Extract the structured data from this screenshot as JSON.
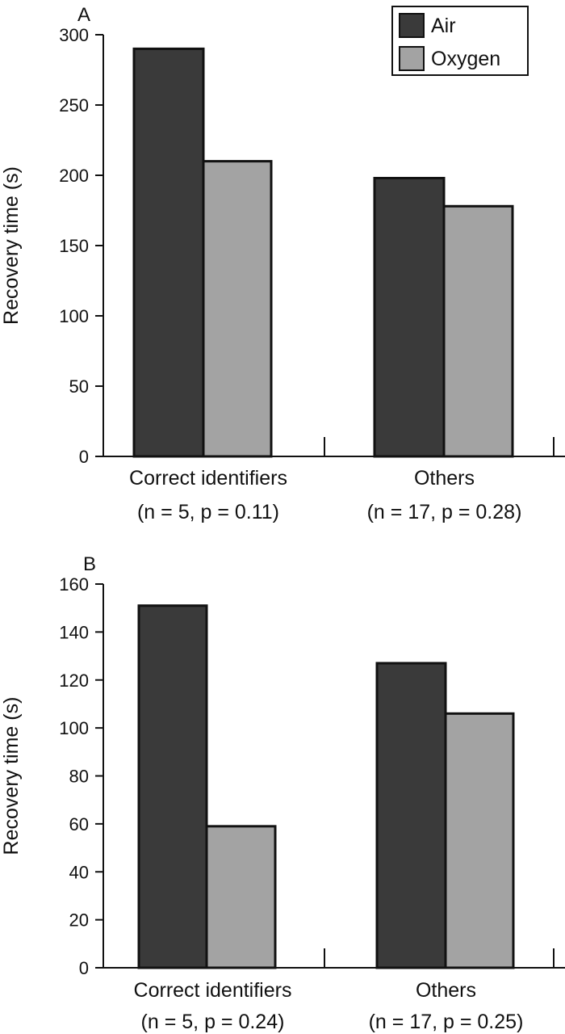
{
  "colors": {
    "air": "#3a3a3a",
    "oxygen": "#a3a3a3"
  },
  "legend": {
    "items": [
      {
        "label": "Air",
        "color": "#3a3a3a"
      },
      {
        "label": "Oxygen",
        "color": "#a3a3a3"
      }
    ],
    "placement": "top-right"
  },
  "chart_data": [
    {
      "type": "bar",
      "panel_label": "A",
      "ylabel": "Recovery time (s)",
      "ylim": [
        0,
        300
      ],
      "yticks": [
        0,
        50,
        100,
        150,
        200,
        250,
        300
      ],
      "categories": [
        {
          "line1": "Correct identifiers",
          "line2": "(n = 5, p = 0.11)"
        },
        {
          "line1": "Others",
          "line2": "(n = 17, p = 0.28)"
        }
      ],
      "series": [
        {
          "name": "Air",
          "values": [
            290,
            198
          ]
        },
        {
          "name": "Oxygen",
          "values": [
            210,
            178
          ]
        }
      ],
      "grid": false
    },
    {
      "type": "bar",
      "panel_label": "B",
      "ylabel": "Recovery time (s)",
      "ylim": [
        0,
        160
      ],
      "yticks": [
        0,
        20,
        40,
        60,
        80,
        100,
        120,
        140,
        160
      ],
      "categories": [
        {
          "line1": "Correct identifiers",
          "line2": "(n = 5, p = 0.24)"
        },
        {
          "line1": "Others",
          "line2": "(n = 17, p = 0.25)"
        }
      ],
      "series": [
        {
          "name": "Air",
          "values": [
            151,
            127
          ]
        },
        {
          "name": "Oxygen",
          "values": [
            59,
            106
          ]
        }
      ],
      "grid": false
    }
  ]
}
